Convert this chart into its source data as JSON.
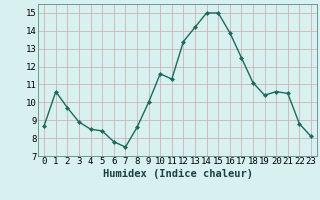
{
  "x": [
    0,
    1,
    2,
    3,
    4,
    5,
    6,
    7,
    8,
    9,
    10,
    11,
    12,
    13,
    14,
    15,
    16,
    17,
    18,
    19,
    20,
    21,
    22,
    23
  ],
  "y": [
    8.7,
    10.6,
    9.7,
    8.9,
    8.5,
    8.4,
    7.8,
    7.5,
    8.6,
    10.0,
    11.6,
    11.3,
    13.4,
    14.2,
    15.0,
    15.0,
    13.9,
    12.5,
    11.1,
    10.4,
    10.6,
    10.5,
    8.8,
    8.1
  ],
  "line_color": "#1a6b5a",
  "bg_color": "#d9f0f0",
  "grid_color": "#c8a8a8",
  "xlabel": "Humidex (Indice chaleur)",
  "ylim": [
    7,
    15.5
  ],
  "xlim": [
    -0.5,
    23.5
  ],
  "yticks": [
    7,
    8,
    9,
    10,
    11,
    12,
    13,
    14,
    15
  ],
  "xtick_labels": [
    "0",
    "1",
    "2",
    "3",
    "4",
    "5",
    "6",
    "7",
    "8",
    "9",
    "10",
    "11",
    "12",
    "13",
    "14",
    "15",
    "16",
    "17",
    "18",
    "19",
    "20",
    "21",
    "22",
    "23"
  ],
  "marker": "D",
  "marker_size": 2.0,
  "line_width": 1.0,
  "xlabel_fontsize": 7.5,
  "tick_fontsize": 6.5
}
